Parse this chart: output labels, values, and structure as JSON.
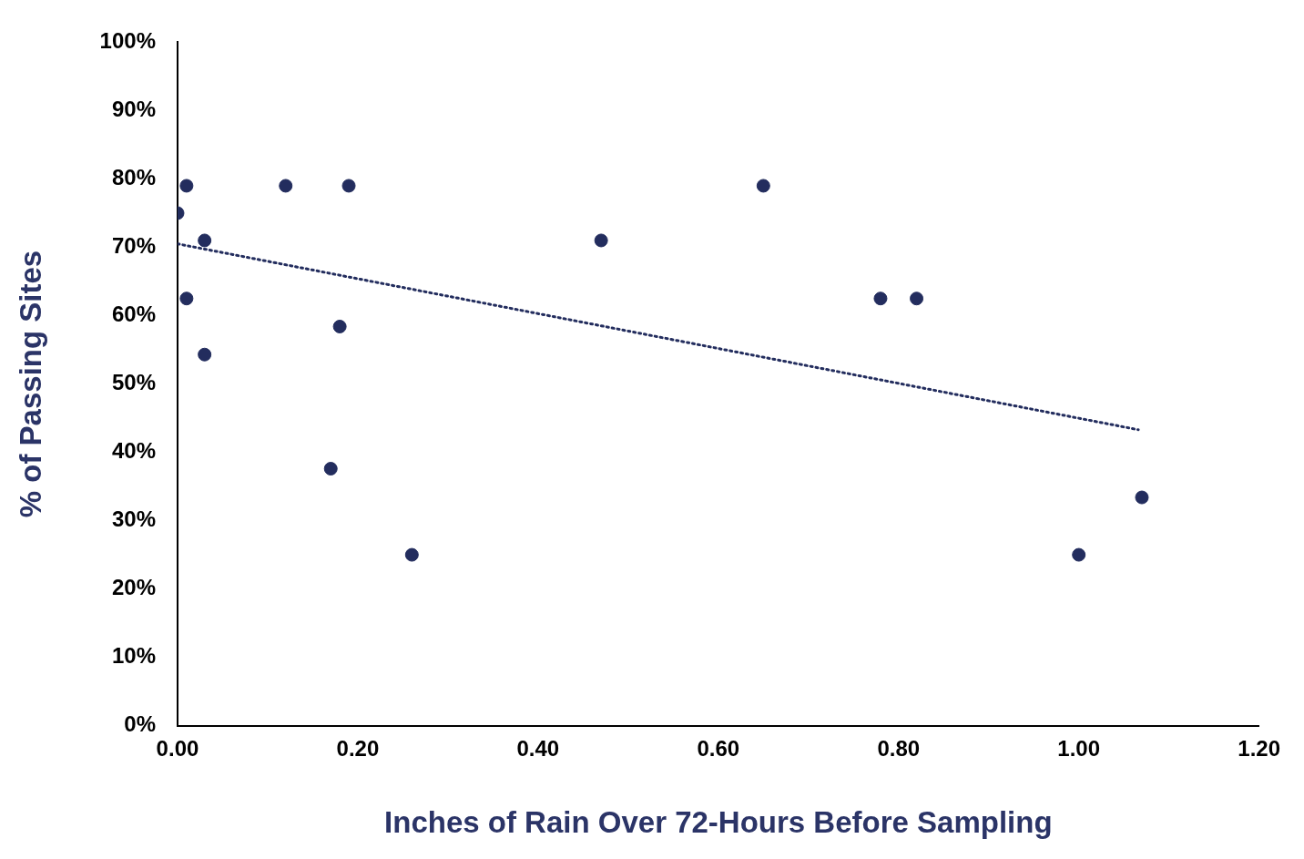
{
  "chart_data": {
    "type": "scatter",
    "xlabel": "Inches of Rain Over 72-Hours Before Sampling",
    "ylabel": "% of Passing Sites",
    "marker": "circle",
    "grid": false,
    "legend": false,
    "xlim": [
      0,
      1.2
    ],
    "xticks": [
      {
        "value": 0,
        "label": "0.00"
      },
      {
        "value": 0.2,
        "label": "0.20"
      },
      {
        "value": 0.4,
        "label": "0.40"
      },
      {
        "value": 0.6,
        "label": "0.60"
      },
      {
        "value": 0.8,
        "label": "0.80"
      },
      {
        "value": 1,
        "label": "1.00"
      },
      {
        "value": 1.2,
        "label": "1.20"
      }
    ],
    "ylim": [
      0,
      100
    ],
    "yticks": [
      {
        "value": 0,
        "label": "0%"
      },
      {
        "value": 10,
        "label": "10%"
      },
      {
        "value": 20,
        "label": "20%"
      },
      {
        "value": 30,
        "label": "30%"
      },
      {
        "value": 40,
        "label": "40%"
      },
      {
        "value": 50,
        "label": "50%"
      },
      {
        "value": 60,
        "label": "60%"
      },
      {
        "value": 70,
        "label": "70%"
      },
      {
        "value": 80,
        "label": "80%"
      },
      {
        "value": 90,
        "label": "90%"
      },
      {
        "value": 100,
        "label": "100%"
      }
    ],
    "series": [
      {
        "color": "#232d5e",
        "x": [
          0,
          0.01,
          0.12,
          0.19,
          0.65,
          0.03,
          0.47,
          0.01,
          0.78,
          0.82,
          0.18,
          0.03,
          0.17,
          0.26,
          1.0,
          1.07
        ],
        "values": [
          75,
          79,
          79,
          79,
          79,
          71,
          71,
          62.5,
          62.5,
          62.5,
          58.4,
          54.3,
          37.6,
          25,
          25,
          33.4
        ]
      },
      {
        "type": "line",
        "color": "#232d5e",
        "marker": "none",
        "line_style": "dotted",
        "x": [
          0,
          1.066
        ],
        "values": [
          70.5,
          43.3
        ]
      }
    ]
  }
}
